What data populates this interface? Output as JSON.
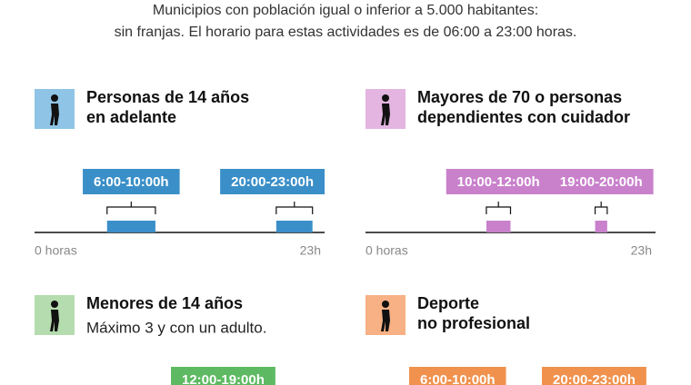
{
  "header": {
    "lines": [
      "Municipios con población igual o inferior a 5.000 habitantes:",
      "sin franjas. El horario para estas actividades es de 06:00 a 23:00 horas."
    ]
  },
  "panels": [
    {
      "title_lines": [
        "Personas de 14 años",
        "en adelante"
      ],
      "icon_color": "#8fc4e6",
      "color": "#3b8fc8",
      "axis": {
        "start_label": "0 horas",
        "end_label": "23h",
        "range": [
          0,
          24
        ]
      },
      "slots": [
        {
          "label": "6:00-10:00h",
          "start": 6,
          "end": 10
        },
        {
          "label": "20:00-23:00h",
          "start": 20,
          "end": 23
        }
      ]
    },
    {
      "title_lines": [
        "Mayores de 70 o personas",
        "dependientes con cuidador"
      ],
      "icon_color": "#e3b5e0",
      "color": "#c981cc",
      "axis": {
        "start_label": "0 horas",
        "end_label": "23h",
        "range": [
          0,
          24
        ]
      },
      "slots": [
        {
          "label": "10:00-12:00h",
          "start": 10,
          "end": 12
        },
        {
          "label": "19:00-20:00h",
          "start": 19,
          "end": 20
        }
      ]
    },
    {
      "title_lines": [
        "Menores de 14 años"
      ],
      "subtitle": "Máximo 3 y con un adulto.",
      "icon_color": "#b5dcae",
      "color": "#5dba62",
      "slots": [
        {
          "label": "12:00-19:00h"
        }
      ]
    },
    {
      "title_lines": [
        "Deporte",
        "no profesional"
      ],
      "icon_color": "#f7b184",
      "color": "#f0924e",
      "slots": [
        {
          "label": "6:00-10:00h"
        },
        {
          "label": "20:00-23:00h"
        }
      ]
    }
  ]
}
